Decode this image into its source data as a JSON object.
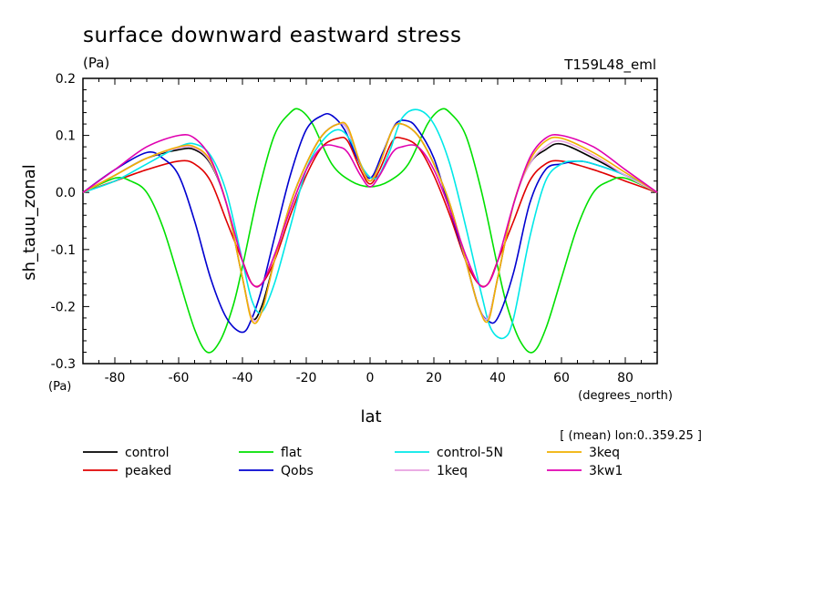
{
  "chart_data": {
    "type": "line",
    "title": "surface downward eastward stress",
    "units": "(Pa)",
    "units_bottom": "(Pa)",
    "run_label": "T159L48_eml",
    "xlabel": "lat",
    "xunits": "(degrees_north)",
    "ylabel": "sh_tauu_zonal",
    "mean_note": "[ (mean) lon:0..359.25 ]",
    "xlim": [
      -90,
      90
    ],
    "ylim": [
      -0.3,
      0.2
    ],
    "xticks": [
      "-80",
      "-60",
      "-40",
      "-20",
      "0",
      "20",
      "40",
      "60",
      "80"
    ],
    "yticks": [
      "-0.3",
      "-0.2",
      "-0.1",
      "0.0",
      "0.1",
      "0.2"
    ],
    "legend_placement": "bottom",
    "series": [
      {
        "name": "control",
        "color": "#000000",
        "x": [
          -90,
          -80,
          -70,
          -60,
          -55,
          -50,
          -45,
          -40,
          -37,
          -34,
          -30,
          -25,
          -20,
          -15,
          -10,
          -7,
          -3,
          0,
          3,
          7,
          10,
          15,
          20,
          25,
          30,
          34,
          37,
          40,
          45,
          50,
          55,
          60,
          70,
          80,
          90
        ],
        "y": [
          0.0,
          0.03,
          0.06,
          0.075,
          0.075,
          0.05,
          -0.02,
          -0.15,
          -0.22,
          -0.2,
          -0.12,
          -0.02,
          0.05,
          0.1,
          0.12,
          0.11,
          0.05,
          0.02,
          0.05,
          0.11,
          0.12,
          0.1,
          0.05,
          -0.02,
          -0.12,
          -0.2,
          -0.22,
          -0.15,
          -0.02,
          0.05,
          0.075,
          0.085,
          0.06,
          0.03,
          0.0
        ]
      },
      {
        "name": "peaked",
        "color": "#e00000",
        "x": [
          -90,
          -80,
          -70,
          -60,
          -55,
          -50,
          -45,
          -40,
          -37,
          -34,
          -30,
          -25,
          -20,
          -15,
          -10,
          -7,
          -3,
          0,
          3,
          7,
          10,
          15,
          20,
          25,
          30,
          34,
          37,
          40,
          45,
          50,
          55,
          60,
          70,
          80,
          90
        ],
        "y": [
          0.0,
          0.02,
          0.04,
          0.055,
          0.05,
          0.02,
          -0.05,
          -0.12,
          -0.16,
          -0.16,
          -0.12,
          -0.04,
          0.03,
          0.08,
          0.095,
          0.09,
          0.04,
          0.015,
          0.04,
          0.09,
          0.095,
          0.08,
          0.03,
          -0.04,
          -0.12,
          -0.16,
          -0.16,
          -0.12,
          -0.05,
          0.02,
          0.05,
          0.055,
          0.04,
          0.02,
          0.0
        ]
      },
      {
        "name": "flat",
        "color": "#00e000",
        "x": [
          -90,
          -80,
          -75,
          -70,
          -65,
          -60,
          -55,
          -51,
          -47,
          -43,
          -40,
          -35,
          -30,
          -25,
          -22,
          -18,
          -12,
          -6,
          0,
          6,
          12,
          18,
          22,
          25,
          30,
          35,
          40,
          43,
          47,
          51,
          55,
          60,
          65,
          70,
          75,
          80,
          90
        ],
        "y": [
          0.0,
          0.025,
          0.02,
          0.0,
          -0.06,
          -0.15,
          -0.24,
          -0.28,
          -0.26,
          -0.2,
          -0.13,
          0.0,
          0.1,
          0.14,
          0.145,
          0.12,
          0.05,
          0.02,
          0.01,
          0.02,
          0.05,
          0.12,
          0.145,
          0.14,
          0.1,
          0.0,
          -0.13,
          -0.2,
          -0.26,
          -0.28,
          -0.24,
          -0.15,
          -0.06,
          0.0,
          0.02,
          0.025,
          0.0
        ]
      },
      {
        "name": "Qobs",
        "color": "#0000d0",
        "x": [
          -90,
          -80,
          -70,
          -65,
          -60,
          -55,
          -50,
          -45,
          -40,
          -37,
          -34,
          -30,
          -25,
          -20,
          -15,
          -12,
          -8,
          -4,
          0,
          4,
          8,
          12,
          15,
          20,
          25,
          30,
          34,
          37,
          40,
          45,
          50,
          55,
          60,
          65,
          70,
          80,
          90
        ],
        "y": [
          0.0,
          0.04,
          0.07,
          0.06,
          0.03,
          -0.05,
          -0.15,
          -0.22,
          -0.245,
          -0.22,
          -0.17,
          -0.08,
          0.03,
          0.11,
          0.135,
          0.135,
          0.11,
          0.06,
          0.025,
          0.07,
          0.12,
          0.125,
          0.11,
          0.06,
          -0.03,
          -0.12,
          -0.2,
          -0.225,
          -0.22,
          -0.14,
          -0.02,
          0.04,
          0.05,
          0.055,
          0.05,
          0.03,
          0.0
        ]
      },
      {
        "name": "control-5N",
        "color": "#00e8e8",
        "x": [
          -90,
          -80,
          -70,
          -60,
          -55,
          -50,
          -45,
          -40,
          -37,
          -34,
          -30,
          -25,
          -20,
          -15,
          -10,
          -6,
          -2,
          2,
          6,
          10,
          15,
          20,
          25,
          30,
          35,
          38,
          42,
          45,
          50,
          55,
          60,
          65,
          70,
          80,
          90
        ],
        "y": [
          0.0,
          0.02,
          0.05,
          0.08,
          0.085,
          0.065,
          0.0,
          -0.12,
          -0.19,
          -0.21,
          -0.16,
          -0.06,
          0.04,
          0.09,
          0.11,
          0.09,
          0.04,
          0.025,
          0.07,
          0.13,
          0.145,
          0.12,
          0.05,
          -0.06,
          -0.18,
          -0.24,
          -0.255,
          -0.22,
          -0.08,
          0.02,
          0.05,
          0.055,
          0.05,
          0.03,
          0.0
        ]
      },
      {
        "name": "1keq",
        "color": "#e8a0e0",
        "x": [
          -90,
          -80,
          -70,
          -60,
          -55,
          -50,
          -45,
          -40,
          -37,
          -34,
          -30,
          -25,
          -20,
          -15,
          -10,
          -7,
          -3,
          0,
          3,
          7,
          10,
          15,
          20,
          25,
          30,
          34,
          37,
          40,
          45,
          50,
          55,
          60,
          70,
          80,
          90
        ],
        "y": [
          0.0,
          0.03,
          0.06,
          0.078,
          0.078,
          0.052,
          -0.02,
          -0.15,
          -0.22,
          -0.21,
          -0.12,
          -0.02,
          0.05,
          0.1,
          0.12,
          0.11,
          0.05,
          0.02,
          0.05,
          0.11,
          0.12,
          0.1,
          0.05,
          -0.02,
          -0.12,
          -0.2,
          -0.22,
          -0.15,
          -0.02,
          0.05,
          0.08,
          0.09,
          0.065,
          0.03,
          0.0
        ]
      },
      {
        "name": "3keq",
        "color": "#f0b000",
        "x": [
          -90,
          -80,
          -70,
          -60,
          -55,
          -50,
          -45,
          -40,
          -37,
          -34,
          -30,
          -25,
          -20,
          -15,
          -10,
          -7,
          -3,
          0,
          3,
          7,
          10,
          15,
          20,
          25,
          30,
          34,
          37,
          40,
          45,
          50,
          55,
          60,
          70,
          80,
          90
        ],
        "y": [
          0.0,
          0.03,
          0.06,
          0.08,
          0.08,
          0.055,
          -0.02,
          -0.15,
          -0.225,
          -0.21,
          -0.12,
          -0.02,
          0.05,
          0.1,
          0.12,
          0.115,
          0.05,
          0.02,
          0.05,
          0.11,
          0.12,
          0.1,
          0.05,
          -0.02,
          -0.12,
          -0.2,
          -0.225,
          -0.15,
          -0.02,
          0.055,
          0.09,
          0.095,
          0.07,
          0.035,
          0.0
        ]
      },
      {
        "name": "3kw1",
        "color": "#e000b0",
        "x": [
          -90,
          -80,
          -70,
          -60,
          -55,
          -50,
          -45,
          -40,
          -37,
          -34,
          -30,
          -25,
          -20,
          -15,
          -10,
          -7,
          -3,
          0,
          3,
          7,
          10,
          15,
          20,
          25,
          30,
          34,
          37,
          40,
          45,
          50,
          55,
          60,
          70,
          80,
          90
        ],
        "y": [
          0.0,
          0.04,
          0.08,
          0.1,
          0.095,
          0.06,
          -0.02,
          -0.12,
          -0.16,
          -0.16,
          -0.11,
          -0.03,
          0.04,
          0.08,
          0.08,
          0.07,
          0.03,
          0.01,
          0.03,
          0.07,
          0.08,
          0.08,
          0.04,
          -0.03,
          -0.11,
          -0.16,
          -0.16,
          -0.12,
          -0.02,
          0.06,
          0.095,
          0.1,
          0.08,
          0.04,
          0.0
        ]
      }
    ]
  }
}
